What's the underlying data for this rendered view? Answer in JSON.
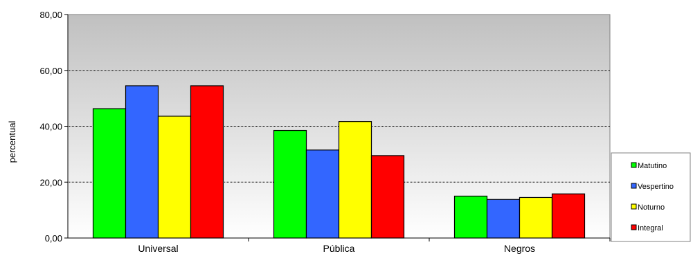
{
  "chart_data": {
    "type": "bar",
    "title": "",
    "xlabel": "",
    "ylabel": "percentual",
    "ylim": [
      0,
      80
    ],
    "yticks": [
      "0,00",
      "20,00",
      "40,00",
      "60,00",
      "80,00"
    ],
    "grid": true,
    "legend_position": "right",
    "categories": [
      "Universal",
      "Pública",
      "Negros"
    ],
    "series": [
      {
        "name": "Matutino",
        "color": "#00ff00",
        "values": [
          46.3,
          38.5,
          15.0
        ]
      },
      {
        "name": "Vespertino",
        "color": "#3366ff",
        "values": [
          54.5,
          31.5,
          13.8
        ]
      },
      {
        "name": "Noturno",
        "color": "#ffff00",
        "values": [
          43.6,
          41.7,
          14.5
        ]
      },
      {
        "name": "Integral",
        "color": "#ff0000",
        "values": [
          54.5,
          29.5,
          15.8
        ]
      }
    ]
  }
}
